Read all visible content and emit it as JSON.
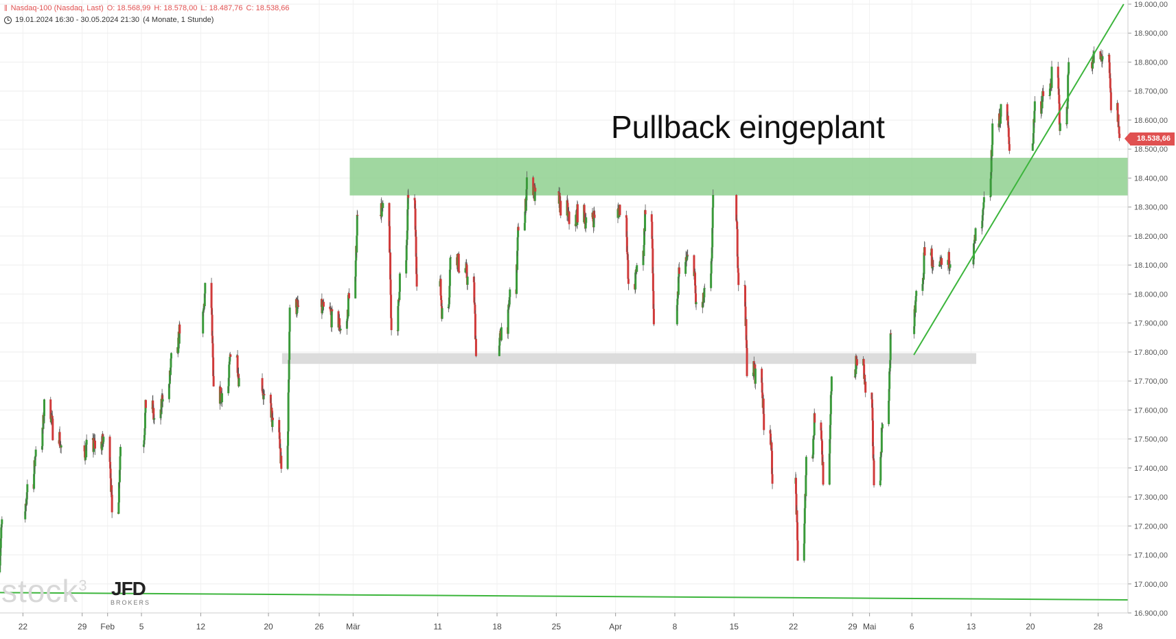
{
  "header": {
    "symbol_line": {
      "instrument": "Nasdaq-100 (Nasdaq, Last)",
      "open": "O: 18.568,99",
      "high": "H: 18.578,00",
      "low": "L: 18.487,76",
      "close": "C: 18.538,66"
    },
    "range_line": {
      "range": "19.01.2024 16:30 - 30.05.2024 21:30",
      "period": "(4 Monate, 1 Stunde)"
    }
  },
  "annotation": "Pullback eingeplant",
  "watermark": {
    "stock": "stock",
    "stock_sup": "3",
    "jfd": "JFD",
    "brokers": "BROKERS"
  },
  "colors": {
    "up": "#3a9a3a",
    "down": "#d03a3a",
    "zone": "#8fd08f",
    "support": "#dcdcdc",
    "trendline": "#3cb53c",
    "badge": "#e05050"
  },
  "chart_data": {
    "type": "candlestick",
    "title": "",
    "xlabel": "",
    "ylabel": "",
    "ylim": [
      16900,
      19000
    ],
    "y_ticks": [
      "16.900,00",
      "17.000,00",
      "17.100,00",
      "17.200,00",
      "17.300,00",
      "17.400,00",
      "17.500,00",
      "17.600,00",
      "17.700,00",
      "17.800,00",
      "17.900,00",
      "18.000,00",
      "18.100,00",
      "18.200,00",
      "18.300,00",
      "18.400,00",
      "18.500,00",
      "18.600,00",
      "18.700,00",
      "18.800,00",
      "18.900,00",
      "19.000,00"
    ],
    "x_ticks": [
      {
        "label": "22",
        "date": "2024-01-22"
      },
      {
        "label": "29",
        "date": "2024-01-29"
      },
      {
        "label": "Feb",
        "date": "2024-02-01"
      },
      {
        "label": "5",
        "date": "2024-02-05"
      },
      {
        "label": "12",
        "date": "2024-02-12"
      },
      {
        "label": "20",
        "date": "2024-02-20"
      },
      {
        "label": "26",
        "date": "2024-02-26"
      },
      {
        "label": "Mär",
        "date": "2024-03-01"
      },
      {
        "label": "11",
        "date": "2024-03-11"
      },
      {
        "label": "18",
        "date": "2024-03-18"
      },
      {
        "label": "25",
        "date": "2024-03-25"
      },
      {
        "label": "Apr",
        "date": "2024-04-01"
      },
      {
        "label": "8",
        "date": "2024-04-08"
      },
      {
        "label": "15",
        "date": "2024-04-15"
      },
      {
        "label": "22",
        "date": "2024-04-22"
      },
      {
        "label": "29",
        "date": "2024-04-29"
      },
      {
        "label": "Mai",
        "date": "2024-05-01"
      },
      {
        "label": "6",
        "date": "2024-05-06"
      },
      {
        "label": "13",
        "date": "2024-05-13"
      },
      {
        "label": "20",
        "date": "2024-05-20"
      },
      {
        "label": "28",
        "date": "2024-05-28"
      }
    ],
    "last_price": "18.538,66",
    "anchor_closes": [
      {
        "date": "2024-01-19",
        "close": 17080
      },
      {
        "date": "2024-01-22",
        "close": 17340
      },
      {
        "date": "2024-01-24",
        "close": 17610
      },
      {
        "date": "2024-01-26",
        "close": 17450
      },
      {
        "date": "2024-01-29",
        "close": 17470
      },
      {
        "date": "2024-01-31",
        "close": 17490
      },
      {
        "date": "2024-02-01",
        "close": 17240
      },
      {
        "date": "2024-02-02",
        "close": 17480
      },
      {
        "date": "2024-02-05",
        "close": 17620
      },
      {
        "date": "2024-02-06",
        "close": 17560
      },
      {
        "date": "2024-02-08",
        "close": 17770
      },
      {
        "date": "2024-02-12",
        "close": 18010
      },
      {
        "date": "2024-02-13",
        "close": 17650
      },
      {
        "date": "2024-02-14",
        "close": 17660
      },
      {
        "date": "2024-02-15",
        "close": 17810
      },
      {
        "date": "2024-02-16",
        "close": 17700
      },
      {
        "date": "2024-02-20",
        "close": 17540
      },
      {
        "date": "2024-02-21",
        "close": 17390
      },
      {
        "date": "2024-02-22",
        "close": 17960
      },
      {
        "date": "2024-02-26",
        "close": 17940
      },
      {
        "date": "2024-02-28",
        "close": 17880
      },
      {
        "date": "2024-02-29",
        "close": 18010
      },
      {
        "date": "2024-03-01",
        "close": 18300
      },
      {
        "date": "2024-03-04",
        "close": 18280
      },
      {
        "date": "2024-03-05",
        "close": 17880
      },
      {
        "date": "2024-03-06",
        "close": 18060
      },
      {
        "date": "2024-03-07",
        "close": 18350
      },
      {
        "date": "2024-03-08",
        "close": 18060
      },
      {
        "date": "2024-03-11",
        "close": 17930
      },
      {
        "date": "2024-03-12",
        "close": 18140
      },
      {
        "date": "2024-03-14",
        "close": 18050
      },
      {
        "date": "2024-03-15",
        "close": 17810
      },
      {
        "date": "2024-03-18",
        "close": 17880
      },
      {
        "date": "2024-03-19",
        "close": 18000
      },
      {
        "date": "2024-03-20",
        "close": 18240
      },
      {
        "date": "2024-03-21",
        "close": 18380
      },
      {
        "date": "2024-03-22",
        "close": 18330
      },
      {
        "date": "2024-03-25",
        "close": 18300
      },
      {
        "date": "2024-03-26",
        "close": 18250
      },
      {
        "date": "2024-03-27",
        "close": 18280
      },
      {
        "date": "2024-03-28",
        "close": 18250
      },
      {
        "date": "2024-04-01",
        "close": 18300
      },
      {
        "date": "2024-04-02",
        "close": 18010
      },
      {
        "date": "2024-04-03",
        "close": 18100
      },
      {
        "date": "2024-04-04",
        "close": 18300
      },
      {
        "date": "2024-04-05",
        "close": 17900
      },
      {
        "date": "2024-04-08",
        "close": 18100
      },
      {
        "date": "2024-04-09",
        "close": 18120
      },
      {
        "date": "2024-04-10",
        "close": 17950
      },
      {
        "date": "2024-04-11",
        "close": 18000
      },
      {
        "date": "2024-04-12",
        "close": 18310
      },
      {
        "date": "2024-04-15",
        "close": 18050
      },
      {
        "date": "2024-04-16",
        "close": 17750
      },
      {
        "date": "2024-04-17",
        "close": 17720
      },
      {
        "date": "2024-04-18",
        "close": 17560
      },
      {
        "date": "2024-04-19",
        "close": 17380
      },
      {
        "date": "2024-04-22",
        "close": 17100
      },
      {
        "date": "2024-04-23",
        "close": 17430
      },
      {
        "date": "2024-04-24",
        "close": 17580
      },
      {
        "date": "2024-04-25",
        "close": 17370
      },
      {
        "date": "2024-04-26",
        "close": 17730
      },
      {
        "date": "2024-04-29",
        "close": 17770
      },
      {
        "date": "2024-04-30",
        "close": 17660
      },
      {
        "date": "2024-05-01",
        "close": 17360
      },
      {
        "date": "2024-05-02",
        "close": 17580
      },
      {
        "date": "2024-05-03",
        "close": 17880
      },
      {
        "date": "2024-05-06",
        "close": 18000
      },
      {
        "date": "2024-05-07",
        "close": 18160
      },
      {
        "date": "2024-05-08",
        "close": 18070
      },
      {
        "date": "2024-05-09",
        "close": 18100
      },
      {
        "date": "2024-05-10",
        "close": 18130
      },
      {
        "date": "2024-05-13",
        "close": 18200
      },
      {
        "date": "2024-05-14",
        "close": 18310
      },
      {
        "date": "2024-05-15",
        "close": 18580
      },
      {
        "date": "2024-05-16",
        "close": 18630
      },
      {
        "date": "2024-05-17",
        "close": 18500
      },
      {
        "date": "2024-05-20",
        "close": 18650
      },
      {
        "date": "2024-05-21",
        "close": 18680
      },
      {
        "date": "2024-05-22",
        "close": 18750
      },
      {
        "date": "2024-05-23",
        "close": 18560
      },
      {
        "date": "2024-05-24",
        "close": 18800
      },
      {
        "date": "2024-05-28",
        "close": 18820
      },
      {
        "date": "2024-05-29",
        "close": 18650
      },
      {
        "date": "2024-05-30",
        "close": 18538.66
      }
    ],
    "resistance_zone": [
      18340,
      18470
    ],
    "support_zone": [
      17765,
      17790
    ],
    "trendline_up": [
      {
        "date": "2024-05-06",
        "y": 17790
      },
      {
        "date": "2024-05-31",
        "y": 19000
      }
    ],
    "lower_line": [
      {
        "date": "2024-01-19",
        "y": 16970
      },
      {
        "date": "2024-05-31",
        "y": 16945
      }
    ]
  }
}
